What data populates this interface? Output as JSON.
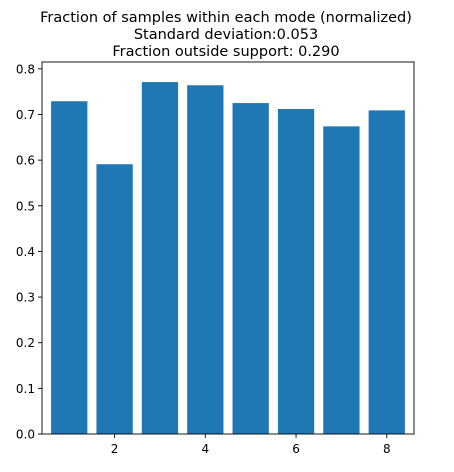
{
  "chart_data": {
    "type": "bar",
    "title": [
      "Fraction of samples within each mode (normalized)",
      "Standard deviation:0.053",
      "Fraction outside support: 0.290"
    ],
    "xlabel": "",
    "ylabel": "",
    "x": [
      1,
      2,
      3,
      4,
      5,
      6,
      7,
      8
    ],
    "values": [
      0.729,
      0.591,
      0.771,
      0.764,
      0.725,
      0.712,
      0.674,
      0.709
    ],
    "xlim": [
      0.4,
      8.6
    ],
    "ylim": [
      0.0,
      0.815
    ],
    "xticks": [
      2,
      4,
      6,
      8
    ],
    "xtick_labels": [
      "2",
      "4",
      "6",
      "8"
    ],
    "yticks": [
      0.0,
      0.1,
      0.2,
      0.3,
      0.4,
      0.5,
      0.6,
      0.7,
      0.8
    ],
    "ytick_labels": [
      "0.0",
      "0.1",
      "0.2",
      "0.3",
      "0.4",
      "0.5",
      "0.6",
      "0.7",
      "0.8"
    ],
    "bar_color": "#1f77b4",
    "grid": false,
    "legend": "none"
  }
}
